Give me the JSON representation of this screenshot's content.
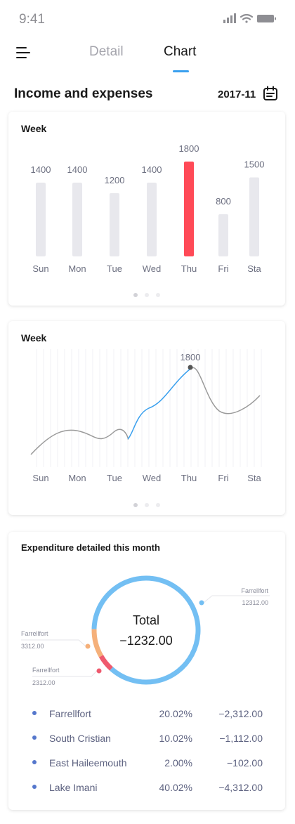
{
  "status_bar": {
    "time": "9:41"
  },
  "tabs": [
    {
      "label": "Detail",
      "active": false
    },
    {
      "label": "Chart",
      "active": true
    }
  ],
  "header": {
    "title": "Income and expenses",
    "date": "2017-11"
  },
  "chart_data": [
    {
      "type": "bar",
      "title": "Week",
      "categories": [
        "Sun",
        "Mon",
        "Tue",
        "Wed",
        "Thu",
        "Fri",
        "Sta"
      ],
      "values": [
        1400,
        1400,
        1200,
        1400,
        1800,
        800,
        1500
      ],
      "highlight_index": 4,
      "colors": {
        "bar": "#e8e8ed",
        "highlight": "#ff4a57"
      }
    },
    {
      "type": "line",
      "title": "Week",
      "categories": [
        "Sun",
        "Mon",
        "Tue",
        "Wed",
        "Thu",
        "Fri",
        "Sta"
      ],
      "peak_label": "1800",
      "peak_index": 4,
      "colors": {
        "line": "#9a9a9a",
        "highlight": "#3aa0ee",
        "grid": "#f2f2f4"
      }
    },
    {
      "type": "pie",
      "title": "Expenditure detailed this month",
      "center_title": "Total",
      "center_value": "−1232.00",
      "slices": [
        {
          "label": "Farrellfort",
          "value": "12312.00",
          "color": "#73bff3",
          "share": 0.85
        },
        {
          "label": "Farrellfort",
          "value": "3312.00",
          "color": "#f5b07a",
          "share": 0.09
        },
        {
          "label": "Farrellfort",
          "value": "2312.00",
          "color": "#ef5a6e",
          "share": 0.06
        }
      ]
    }
  ],
  "legend": [
    {
      "name": "Farrellfort",
      "percent": "20.02%",
      "amount": "−2,312.00"
    },
    {
      "name": "South Cristian",
      "percent": "10.02%",
      "amount": "−1,112.00"
    },
    {
      "name": "East Haileemouth",
      "percent": "2.00%",
      "amount": "−102.00"
    },
    {
      "name": "Lake Imani",
      "percent": "40.02%",
      "amount": "−4,312.00"
    }
  ],
  "icons": [
    "signal-icon",
    "wifi-icon",
    "battery-icon",
    "menu-icon",
    "calendar-icon"
  ]
}
